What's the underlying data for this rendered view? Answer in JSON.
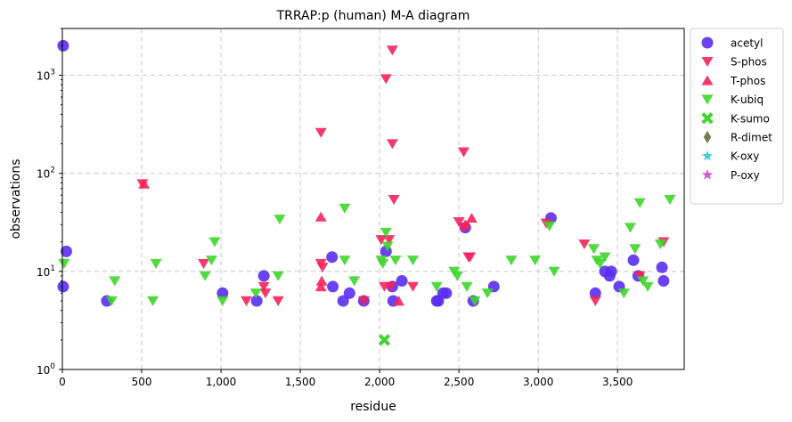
{
  "chart_data": {
    "type": "scatter",
    "title": "TRRAP:p (human) M-A diagram",
    "xlabel": "residue",
    "ylabel": "observations",
    "xlim": [
      0,
      3920
    ],
    "ylim": [
      1,
      3000
    ],
    "yscale": "log",
    "grid": true,
    "legend_position": "outside-top-right",
    "x_ticks": [
      {
        "value": 0,
        "label": "0"
      },
      {
        "value": 500,
        "label": "500"
      },
      {
        "value": 1000,
        "label": "1,000"
      },
      {
        "value": 1500,
        "label": "1,500"
      },
      {
        "value": 2000,
        "label": "2,000"
      },
      {
        "value": 2500,
        "label": "2,500"
      },
      {
        "value": 3000,
        "label": "3,000"
      },
      {
        "value": 3500,
        "label": "3,500"
      }
    ],
    "y_ticks": [
      {
        "value": 1,
        "base": "10",
        "exp": "0"
      },
      {
        "value": 10,
        "base": "10",
        "exp": "1"
      },
      {
        "value": 100,
        "base": "10",
        "exp": "2"
      },
      {
        "value": 1000,
        "base": "10",
        "exp": "3"
      }
    ],
    "series": [
      {
        "name": "acetyl",
        "color": "#5a2df0",
        "marker": "circle",
        "points": [
          [
            5,
            2000
          ],
          [
            5,
            7
          ],
          [
            25,
            16
          ],
          [
            280,
            5
          ],
          [
            1010,
            6
          ],
          [
            1225,
            5
          ],
          [
            1270,
            9
          ],
          [
            1700,
            14
          ],
          [
            1705,
            7
          ],
          [
            1770,
            5
          ],
          [
            1810,
            6
          ],
          [
            1900,
            5
          ],
          [
            2040,
            16
          ],
          [
            2080,
            7
          ],
          [
            2085,
            5
          ],
          [
            2140,
            8
          ],
          [
            2360,
            5
          ],
          [
            2370,
            5
          ],
          [
            2400,
            6
          ],
          [
            2420,
            6
          ],
          [
            2540,
            28
          ],
          [
            2590,
            5
          ],
          [
            2720,
            7
          ],
          [
            3080,
            35
          ],
          [
            3360,
            6
          ],
          [
            3420,
            10
          ],
          [
            3450,
            9
          ],
          [
            3460,
            10
          ],
          [
            3510,
            7
          ],
          [
            3600,
            13
          ],
          [
            3630,
            9
          ],
          [
            3780,
            11
          ],
          [
            3790,
            8
          ]
        ]
      },
      {
        "name": "S-phos",
        "color": "#f5245a",
        "marker": "triangle-down",
        "points": [
          [
            505,
            78
          ],
          [
            890,
            12
          ],
          [
            1160,
            5
          ],
          [
            1270,
            7
          ],
          [
            1280,
            6
          ],
          [
            1360,
            5
          ],
          [
            1630,
            260
          ],
          [
            1630,
            12
          ],
          [
            1640,
            11
          ],
          [
            1900,
            5
          ],
          [
            2010,
            21
          ],
          [
            2030,
            7
          ],
          [
            2040,
            920
          ],
          [
            2060,
            21
          ],
          [
            2070,
            7
          ],
          [
            2080,
            1800
          ],
          [
            2080,
            200
          ],
          [
            2090,
            54
          ],
          [
            2210,
            7
          ],
          [
            2500,
            32
          ],
          [
            2530,
            28
          ],
          [
            2530,
            165
          ],
          [
            2560,
            14
          ],
          [
            2570,
            14
          ],
          [
            3050,
            31
          ],
          [
            3290,
            19
          ],
          [
            3360,
            5
          ],
          [
            3640,
            9
          ],
          [
            3790,
            20
          ]
        ]
      },
      {
        "name": "T-phos",
        "color": "#f5245a",
        "marker": "triangle-up",
        "points": [
          [
            515,
            78
          ],
          [
            1630,
            36
          ],
          [
            1630,
            7
          ],
          [
            1635,
            8
          ],
          [
            2120,
            5
          ],
          [
            2540,
            30
          ],
          [
            2580,
            35
          ]
        ]
      },
      {
        "name": "K-ubiq",
        "color": "#3dd62a",
        "marker": "triangle-down",
        "points": [
          [
            10,
            12
          ],
          [
            310,
            5
          ],
          [
            330,
            8
          ],
          [
            570,
            5
          ],
          [
            590,
            12
          ],
          [
            900,
            9
          ],
          [
            940,
            13
          ],
          [
            960,
            20
          ],
          [
            1010,
            5
          ],
          [
            1220,
            6
          ],
          [
            1360,
            9
          ],
          [
            1370,
            34
          ],
          [
            1780,
            13
          ],
          [
            1780,
            44
          ],
          [
            1840,
            8
          ],
          [
            2010,
            13
          ],
          [
            2020,
            12
          ],
          [
            2040,
            25
          ],
          [
            2050,
            18
          ],
          [
            2100,
            13
          ],
          [
            2210,
            13
          ],
          [
            2360,
            7
          ],
          [
            2470,
            10
          ],
          [
            2490,
            9
          ],
          [
            2550,
            7
          ],
          [
            2600,
            5
          ],
          [
            2680,
            6
          ],
          [
            2830,
            13
          ],
          [
            2980,
            13
          ],
          [
            3070,
            29
          ],
          [
            3100,
            10
          ],
          [
            3350,
            17
          ],
          [
            3370,
            13
          ],
          [
            3390,
            12
          ],
          [
            3420,
            14
          ],
          [
            3540,
            6
          ],
          [
            3580,
            28
          ],
          [
            3610,
            17
          ],
          [
            3640,
            50
          ],
          [
            3660,
            8
          ],
          [
            3690,
            7
          ],
          [
            3770,
            19
          ],
          [
            3830,
            54
          ]
        ]
      },
      {
        "name": "K-sumo",
        "color": "#3dd62a",
        "marker": "x",
        "points": [
          [
            2030,
            2
          ]
        ]
      },
      {
        "name": "R-dimet",
        "color": "#6b6b42",
        "marker": "diamond",
        "points": []
      },
      {
        "name": "K-oxy",
        "color": "#33c6d6",
        "marker": "star",
        "points": []
      },
      {
        "name": "P-oxy",
        "color": "#c84ad0",
        "marker": "star",
        "points": []
      }
    ]
  }
}
